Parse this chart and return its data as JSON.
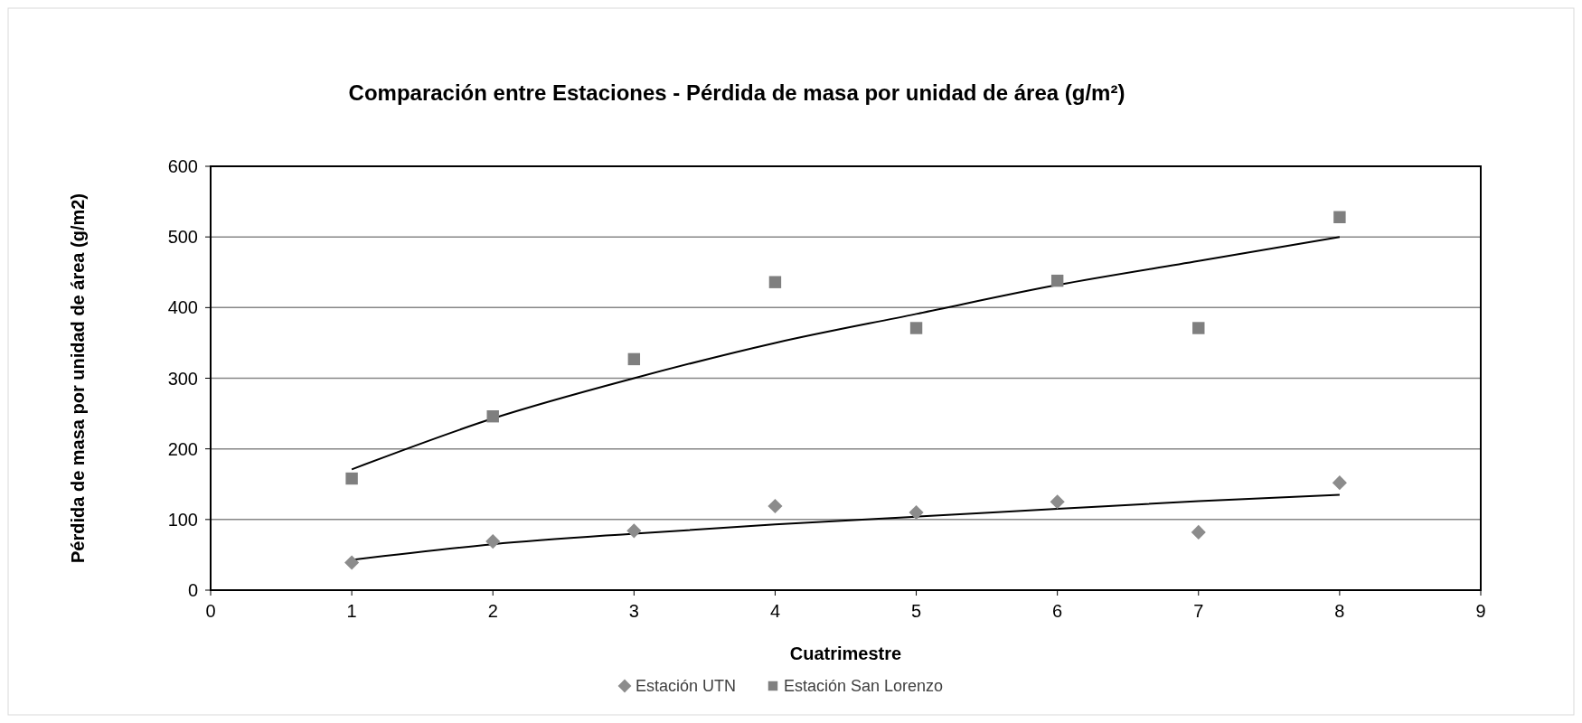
{
  "chart_data": {
    "type": "scatter",
    "title": "Comparación entre Estaciones - Pérdida de masa por unidad de área (g/m²)",
    "xlabel": "Cuatrimestre",
    "ylabel": "Pérdida de masa por unidad de área (g/m2)",
    "xlim": [
      0,
      9
    ],
    "xticks": [
      0,
      1,
      2,
      3,
      4,
      5,
      6,
      7,
      8,
      9
    ],
    "ylim": [
      0,
      600
    ],
    "yticks": [
      0,
      100,
      200,
      300,
      400,
      500,
      600
    ],
    "grid": "y",
    "legend": "bottom",
    "series": [
      {
        "name": "Estación UTN",
        "color": "#8c8c8c",
        "marker": "diamond",
        "x": [
          1,
          2,
          3,
          4,
          5,
          6,
          7,
          8
        ],
        "values": [
          39,
          69,
          84,
          119,
          110,
          125,
          82,
          152
        ]
      },
      {
        "name": "Estación San Lorenzo",
        "color": "#7f7f7f",
        "marker": "square",
        "x": [
          1,
          2,
          3,
          4,
          5,
          6,
          7,
          8
        ],
        "values": [
          158,
          246,
          327,
          436,
          371,
          438,
          371,
          528
        ]
      },
      {
        "type": "line",
        "color": "#000000",
        "x": [
          1,
          2,
          3,
          4,
          5,
          6,
          7,
          8
        ],
        "values": [
          43,
          65,
          80,
          93,
          104,
          115,
          126,
          135
        ]
      },
      {
        "type": "line",
        "color": "#000000",
        "x": [
          1,
          2,
          3,
          4,
          5,
          6,
          7,
          8
        ],
        "values": [
          171,
          243,
          300,
          350,
          391,
          432,
          466,
          500
        ]
      }
    ]
  }
}
